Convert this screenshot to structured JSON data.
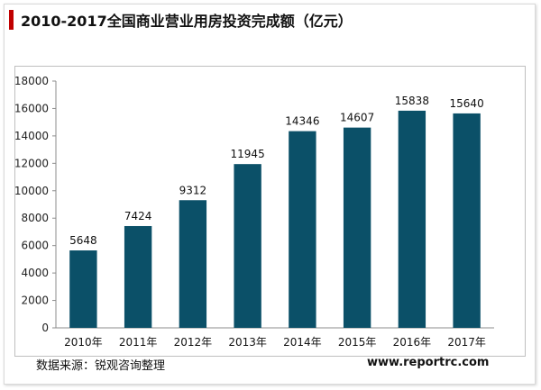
{
  "chart_data": {
    "type": "bar",
    "title": "2010-2017全国商业营业用房投资完成额（亿元）",
    "categories": [
      "2010年",
      "2011年",
      "2012年",
      "2013年",
      "2014年",
      "2015年",
      "2016年",
      "2017年"
    ],
    "values": [
      5648,
      7424,
      9312,
      11945,
      14346,
      14607,
      15838,
      15640
    ],
    "xlabel": "",
    "ylabel": "",
    "ylim": [
      0,
      18000
    ],
    "yticks": [
      0,
      2000,
      4000,
      6000,
      8000,
      10000,
      12000,
      14000,
      16000,
      18000
    ],
    "bar_color": "#0b5068",
    "title_accent_color": "#c00000",
    "grid": false,
    "legend": "none"
  },
  "footer": {
    "source": "数据来源：锐观咨询整理",
    "website": "www.reportrc.com"
  }
}
